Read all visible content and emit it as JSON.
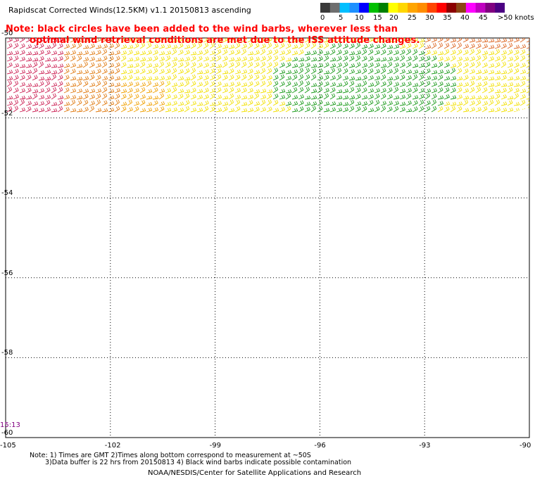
{
  "title": "Rapidscat Corrected Winds(12.5KM) v1.1 20150813 ascending",
  "note": {
    "line1": "Note: black circles have been added to the wind barbs, wherever less than",
    "line2": "optimal wind retrieval conditions are met due to the ISS attitude changes."
  },
  "colorbar": {
    "labels": [
      "0",
      "5",
      "10",
      "15",
      "20",
      "25",
      "30",
      "35",
      "40",
      "45",
      ">50 knots"
    ],
    "colors": [
      "#3a3a3a",
      "#6e6e6e",
      "#00bfff",
      "#1e90ff",
      "#0000ff",
      "#00c000",
      "#008000",
      "#ffff00",
      "#ffd700",
      "#ffa500",
      "#ff8c00",
      "#ff4500",
      "#ff0000",
      "#8b0000",
      "#8b4513",
      "#ff00ff",
      "#c000c0",
      "#800080",
      "#4b0082"
    ]
  },
  "axes": {
    "x_ticks": [
      "-105",
      "-102",
      "-99",
      "-96",
      "-93",
      "-90"
    ],
    "y_ticks": [
      "-50",
      "-52",
      "-54",
      "-56",
      "-58",
      "-60"
    ],
    "lon_range": [
      -105,
      -90
    ],
    "lat_range": [
      -60,
      -50
    ]
  },
  "time_label": "15:13",
  "bottom_notes": {
    "line1": "Note: 1) Times are GMT 2)Times along bottom correspond to measurement at ~50S",
    "line2": "3)Data buffer is 22 hrs from 20150813 4) Black wind barbs indicate possible contamination"
  },
  "credit": "NOAA/NESDIS/Center for Satellite Applications and Research"
}
